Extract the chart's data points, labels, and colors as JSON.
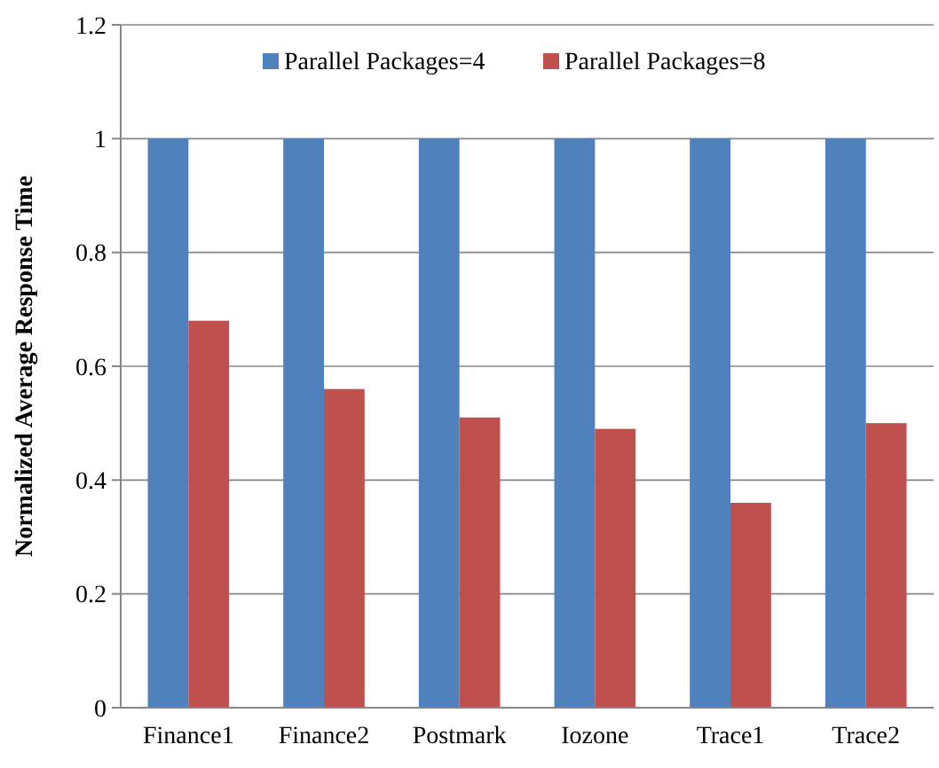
{
  "chart_data": {
    "type": "bar",
    "ylabel": "Normalized  Average Response Time",
    "categories": [
      "Finance1",
      "Finance2",
      "Postmark",
      "Iozone",
      "Trace1",
      "Trace2"
    ],
    "series": [
      {
        "name": "Parallel Packages=4",
        "color": "#4f81bd",
        "values": [
          1,
          1,
          1,
          1,
          1,
          1
        ]
      },
      {
        "name": "Parallel Packages=8",
        "color": "#c0504d",
        "values": [
          0.68,
          0.56,
          0.51,
          0.49,
          0.36,
          0.5
        ]
      }
    ],
    "ylim": [
      0,
      1.2
    ],
    "yticks": [
      0,
      0.2,
      0.4,
      0.6,
      0.8,
      1,
      1.2
    ],
    "grid": "y",
    "legend": "top"
  }
}
